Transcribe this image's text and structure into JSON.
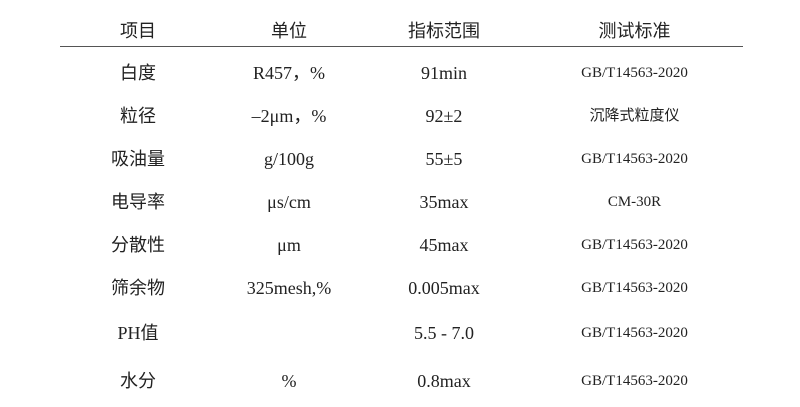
{
  "table": {
    "headers": [
      "项目",
      "单位",
      "指标范围",
      "测试标准"
    ],
    "rows": [
      {
        "item": "白度",
        "unit": "R457，%",
        "range": "91min",
        "standard": "GB/T14563-2020"
      },
      {
        "item": "粒径",
        "unit": "–2μm，%",
        "range": "92±2",
        "standard": "沉降式粒度仪"
      },
      {
        "item": "吸油量",
        "unit": "g/100g",
        "range": "55±5",
        "standard": "GB/T14563-2020"
      },
      {
        "item": "电导率",
        "unit": "μs/cm",
        "range": "35max",
        "standard": "CM-30R"
      },
      {
        "item": "分散性",
        "unit": "μm",
        "range": "45max",
        "standard": "GB/T14563-2020"
      },
      {
        "item": "筛余物",
        "unit": "325mesh,%",
        "range": "0.005max",
        "standard": "GB/T14563-2020"
      },
      {
        "item": "PH值",
        "unit": "",
        "range": "5.5 - 7.0",
        "standard": "GB/T14563-2020"
      },
      {
        "item": "水分",
        "unit": "%",
        "range": "0.8max",
        "standard": "GB/T14563-2020"
      }
    ]
  }
}
